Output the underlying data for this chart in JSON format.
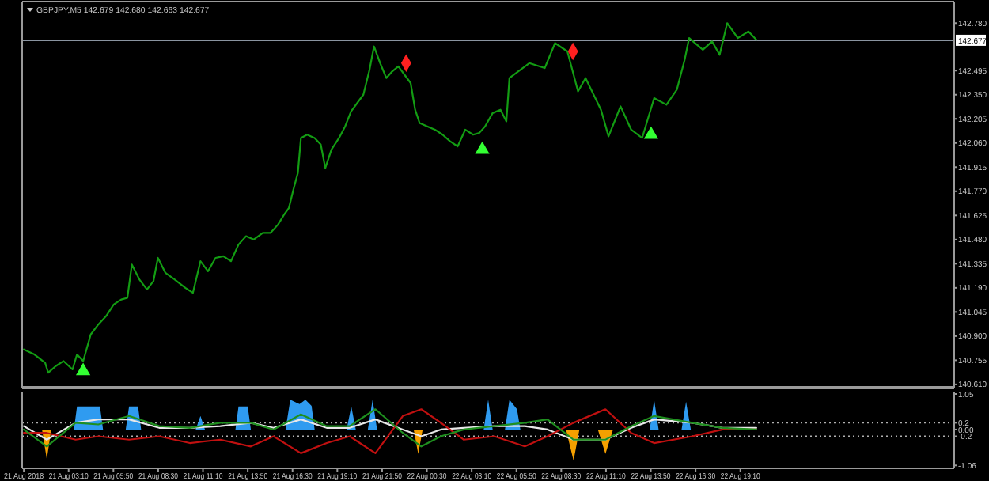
{
  "chart_data": [
    {
      "type": "line",
      "title": "GBPJPY,M5  142.679 142.680 142.663 142.677",
      "xlim": [
        "2018-08-21T00:24",
        "2018-08-23T07:54"
      ],
      "ylim": [
        140.6,
        142.9
      ],
      "tick_labels": "y",
      "grid": false,
      "yticks": [
        {
          "value": 142.78,
          "label": "142.780"
        },
        142.495,
        {
          "value": 142.35,
          "label": "142.350"
        },
        142.205,
        {
          "value": 142.06,
          "label": "142.060"
        },
        141.915,
        {
          "value": 141.77,
          "label": "141.770"
        },
        141.625,
        {
          "value": 141.48,
          "label": "141.480"
        },
        141.335,
        {
          "value": 141.19,
          "label": "141.190"
        },
        141.045,
        {
          "value": 140.9,
          "label": "140.900"
        },
        140.755,
        {
          "value": 140.61,
          "label": "140.610"
        }
      ],
      "ref_lines": [
        {
          "axis": "y",
          "value": 142.677,
          "label": "142.677",
          "color": "#8a94a0",
          "line_style": "solid"
        }
      ],
      "series": [
        {
          "type": "line",
          "color": "#139c13",
          "x": [
            "2018-08-21T00:30",
            "2018-08-21T01:08",
            "2018-08-21T01:46",
            "2018-08-21T01:57",
            "2018-08-21T02:24",
            "2018-08-21T02:52",
            "2018-08-21T03:24",
            "2018-08-21T03:40",
            "2018-08-21T04:02",
            "2018-08-21T04:29",
            "2018-08-21T04:56",
            "2018-08-21T05:24",
            "2018-08-21T05:51",
            "2018-08-21T06:18",
            "2018-08-21T06:40",
            "2018-08-21T06:56",
            "2018-08-21T07:23",
            "2018-08-21T07:50",
            "2018-08-21T08:13",
            "2018-08-21T08:29",
            "2018-08-21T08:56",
            "2018-08-21T09:29",
            "2018-08-21T10:07",
            "2018-08-21T10:34",
            "2018-08-21T11:01",
            "2018-08-21T11:28",
            "2018-08-21T11:55",
            "2018-08-21T12:23",
            "2018-08-21T12:50",
            "2018-08-21T13:17",
            "2018-08-21T13:44",
            "2018-08-21T14:11",
            "2018-08-21T14:44",
            "2018-08-21T15:11",
            "2018-08-21T15:38",
            "2018-08-21T16:00",
            "2018-08-21T16:17",
            "2018-08-21T16:33",
            "2018-08-21T16:49",
            "2018-08-21T17:00",
            "2018-08-21T17:22",
            "2018-08-21T17:49",
            "2018-08-21T18:11",
            "2018-08-21T18:27",
            "2018-08-21T18:49",
            "2018-08-21T19:16",
            "2018-08-21T19:38",
            "2018-08-21T19:59",
            "2018-08-21T20:21",
            "2018-08-21T20:43",
            "2018-08-21T21:05",
            "2018-08-21T21:21",
            "2018-08-21T21:43",
            "2018-08-21T22:05",
            "2018-08-21T22:26",
            "2018-08-21T22:48",
            "2018-08-21T23:10",
            "2018-08-21T23:32",
            "2018-08-21T23:48",
            "2018-08-22T00:04",
            "2018-08-22T00:31",
            "2018-08-22T00:59",
            "2018-08-22T01:26",
            "2018-08-22T01:53",
            "2018-08-22T02:20",
            "2018-08-22T02:47",
            "2018-08-22T03:15",
            "2018-08-22T03:37",
            "2018-08-22T03:58",
            "2018-08-22T04:25",
            "2018-08-22T04:53",
            "2018-08-22T05:14",
            "2018-08-22T05:25",
            "2018-08-22T06:36",
            "2018-08-22T07:31",
            "2018-08-22T08:08",
            "2018-08-22T08:52",
            "2018-08-22T09:30",
            "2018-08-22T09:57",
            "2018-08-22T10:52",
            "2018-08-22T11:19",
            "2018-08-22T12:02",
            "2018-08-22T12:40",
            "2018-08-22T13:19",
            "2018-08-22T14:02",
            "2018-08-22T14:46",
            "2018-08-22T15:23",
            "2018-08-22T15:51",
            "2018-08-22T16:07",
            "2018-08-22T16:56",
            "2018-08-22T17:29",
            "2018-08-22T17:56",
            "2018-08-22T18:23",
            "2018-08-22T19:01",
            "2018-08-22T19:39",
            "2018-08-22T20:07"
          ],
          "values": [
            140.82,
            140.79,
            140.74,
            140.68,
            140.72,
            140.75,
            140.7,
            140.79,
            140.75,
            140.91,
            140.97,
            141.02,
            141.09,
            141.12,
            141.13,
            141.33,
            141.24,
            141.18,
            141.23,
            141.37,
            141.28,
            141.24,
            141.19,
            141.16,
            141.35,
            141.29,
            141.37,
            141.38,
            141.35,
            141.45,
            141.5,
            141.48,
            141.52,
            141.52,
            141.57,
            141.63,
            141.67,
            141.78,
            141.88,
            142.09,
            142.11,
            142.09,
            142.05,
            141.91,
            142.02,
            142.09,
            142.16,
            142.25,
            142.3,
            142.35,
            142.5,
            142.64,
            142.54,
            142.45,
            142.49,
            142.52,
            142.47,
            142.42,
            142.26,
            142.18,
            142.16,
            142.14,
            142.11,
            142.07,
            142.04,
            142.14,
            142.11,
            142.12,
            142.16,
            142.24,
            142.26,
            142.19,
            142.45,
            142.54,
            142.51,
            142.66,
            142.61,
            142.37,
            142.45,
            142.26,
            142.1,
            142.28,
            142.14,
            142.09,
            142.33,
            142.29,
            142.38,
            142.56,
            142.69,
            142.62,
            142.67,
            142.59,
            142.78,
            142.69,
            142.73,
            142.68
          ]
        },
        {
          "type": "scatter",
          "marker": "triangle",
          "color": "#33ff33",
          "x": [
            "2018-08-21T04:02",
            "2018-08-22T03:48",
            "2018-08-22T13:51"
          ],
          "values": [
            140.69,
            142.02,
            142.11
          ]
        },
        {
          "type": "scatter",
          "marker": "diamond",
          "color": "#ff2020",
          "x": [
            "2018-08-21T23:16",
            "2018-08-22T09:12"
          ],
          "values": [
            142.54,
            142.61
          ]
        }
      ]
    },
    {
      "type": "line",
      "xlim": [
        "2018-08-21T00:24",
        "2018-08-23T07:54"
      ],
      "ylim": [
        -1.1,
        1.05
      ],
      "grid": false,
      "yticks": [
        1.05,
        0.2,
        {
          "value": 0,
          "label": "0.00"
        },
        -0.2,
        -1.06
      ],
      "xticks": [
        {
          "value": "2018-08-21T00:30",
          "label": "21 Aug 2018"
        },
        {
          "value": "2018-08-21T03:10",
          "label": "21 Aug 03:10"
        },
        {
          "value": "2018-08-21T05:50",
          "label": "21 Aug 05:50"
        },
        {
          "value": "2018-08-21T08:30",
          "label": "21 Aug 08:30"
        },
        {
          "value": "2018-08-21T11:10",
          "label": "21 Aug 11:10"
        },
        {
          "value": "2018-08-21T13:50",
          "label": "21 Aug 13:50"
        },
        {
          "value": "2018-08-21T16:30",
          "label": "21 Aug 16:30"
        },
        {
          "value": "2018-08-21T19:10",
          "label": "21 Aug 19:10"
        },
        {
          "value": "2018-08-21T21:50",
          "label": "21 Aug 21:50"
        },
        {
          "value": "2018-08-22T00:30",
          "label": "22 Aug 00:30"
        },
        {
          "value": "2018-08-22T03:10",
          "label": "22 Aug 03:10"
        },
        {
          "value": "2018-08-22T05:50",
          "label": "22 Aug 05:50"
        },
        {
          "value": "2018-08-22T08:30",
          "label": "22 Aug 08:30"
        },
        {
          "value": "2018-08-22T11:10",
          "label": "22 Aug 11:10"
        },
        {
          "value": "2018-08-22T13:50",
          "label": "22 Aug 13:50"
        },
        {
          "value": "2018-08-22T16:30",
          "label": "22 Aug 16:30"
        },
        {
          "value": "2018-08-22T19:10",
          "label": "22 Aug 19:10"
        }
      ],
      "ref_lines": [
        {
          "axis": "y",
          "value": 0.2,
          "color": "#b0b0b0",
          "line_style": "dotted"
        },
        {
          "axis": "y",
          "value": -0.2,
          "color": "#b0b0b0",
          "line_style": "dotted"
        }
      ],
      "x": [
        "2018-08-21T00:30",
        "2018-08-21T01:52",
        "2018-08-21T03:35",
        "2018-08-21T04:56",
        "2018-08-21T06:46",
        "2018-08-21T08:34",
        "2018-08-21T10:23",
        "2018-08-21T12:12",
        "2018-08-21T14:01",
        "2018-08-21T15:22",
        "2018-08-21T17:00",
        "2018-08-21T18:32",
        "2018-08-21T19:54",
        "2018-08-21T21:26",
        "2018-08-21T23:04",
        "2018-08-22T00:10",
        "2018-08-22T01:20",
        "2018-08-22T02:42",
        "2018-08-22T04:31",
        "2018-08-22T06:20",
        "2018-08-22T07:41",
        "2018-08-22T09:14",
        "2018-08-22T11:08",
        "2018-08-22T12:40",
        "2018-08-22T14:02",
        "2018-08-22T16:18",
        "2018-08-22T18:07",
        "2018-08-22T20:07"
      ],
      "series": [
        {
          "type": "area",
          "color": "#2f9bf0",
          "x": [
            "2018-08-21T00:30",
            "2018-08-21T03:29",
            "2018-08-21T03:40",
            "2018-08-21T05:02",
            "2018-08-21T05:13",
            "2018-08-21T06:34",
            "2018-08-21T06:46",
            "2018-08-21T07:18",
            "2018-08-21T07:29",
            "2018-08-21T10:44",
            "2018-08-21T11:01",
            "2018-08-21T11:17",
            "2018-08-21T13:06",
            "2018-08-21T13:17",
            "2018-08-21T13:50",
            "2018-08-21T14:01",
            "2018-08-21T16:05",
            "2018-08-21T16:22",
            "2018-08-21T16:55",
            "2018-08-21T17:16",
            "2018-08-21T17:38",
            "2018-08-21T17:49",
            "2018-08-21T19:43",
            "2018-08-21T20:00",
            "2018-08-21T20:16",
            "2018-08-21T20:59",
            "2018-08-21T21:16",
            "2018-08-21T21:32",
            "2018-08-22T03:53",
            "2018-08-22T04:09",
            "2018-08-22T04:25",
            "2018-08-22T05:09",
            "2018-08-22T05:25",
            "2018-08-22T05:52",
            "2018-08-22T06:04",
            "2018-08-22T13:46",
            "2018-08-22T14:02",
            "2018-08-22T14:18",
            "2018-08-22T15:40",
            "2018-08-22T15:56",
            "2018-08-22T16:13",
            "2018-08-22T20:07"
          ],
          "values": [
            0,
            0,
            0.68,
            0.68,
            0,
            0,
            0.68,
            0.68,
            0,
            0,
            0.4,
            0,
            0,
            0.68,
            0.68,
            0,
            0,
            0.88,
            0.75,
            0.88,
            0.7,
            0,
            0,
            0.68,
            0,
            0,
            0.88,
            0,
            0,
            0.88,
            0,
            0,
            0.88,
            0.6,
            0,
            0,
            0.88,
            0,
            0,
            0.82,
            0,
            0
          ]
        },
        {
          "type": "area",
          "color": "#f5a000",
          "x": [
            "2018-08-21T00:30",
            "2018-08-21T01:35",
            "2018-08-21T01:52",
            "2018-08-21T02:08",
            "2018-08-21T23:43",
            "2018-08-21T23:59",
            "2018-08-22T00:15",
            "2018-08-22T08:47",
            "2018-08-22T09:14",
            "2018-08-22T09:35",
            "2018-08-22T10:41",
            "2018-08-22T11:08",
            "2018-08-22T11:35",
            "2018-08-22T20:07"
          ],
          "values": [
            0,
            0,
            -0.88,
            0,
            0,
            -0.72,
            0,
            0,
            -0.92,
            0,
            0,
            -0.72,
            0,
            0
          ]
        },
        {
          "type": "line",
          "color": "#e8e8e8",
          "values": [
            0.1,
            -0.3,
            0.2,
            0.3,
            0.3,
            0.05,
            0.05,
            0.1,
            0.2,
            0.05,
            0.3,
            0.05,
            0.05,
            0.3,
            0.0,
            -0.2,
            0.0,
            0.05,
            0.1,
            0.1,
            0.0,
            -0.3,
            -0.3,
            0.05,
            0.3,
            0.2,
            0.05,
            0.05
          ]
        },
        {
          "type": "line",
          "color": "#c01010",
          "values": [
            -0.1,
            -0.1,
            -0.3,
            -0.2,
            -0.3,
            -0.2,
            -0.4,
            -0.3,
            -0.5,
            -0.2,
            -0.7,
            -0.4,
            -0.2,
            -0.7,
            0.4,
            0.6,
            0.2,
            -0.3,
            -0.2,
            -0.5,
            -0.2,
            0.2,
            0.6,
            -0.1,
            -0.4,
            -0.2,
            0.0,
            0.0
          ]
        },
        {
          "type": "line",
          "color": "#1f8f1f",
          "values": [
            0.0,
            -0.5,
            0.2,
            0.15,
            0.4,
            0.1,
            0.05,
            0.2,
            0.2,
            0.0,
            0.45,
            0.1,
            0.1,
            0.6,
            -0.1,
            -0.5,
            -0.2,
            0.0,
            0.1,
            0.2,
            0.3,
            -0.3,
            -0.3,
            0.1,
            0.4,
            0.2,
            0.05,
            0.0
          ]
        }
      ]
    }
  ]
}
